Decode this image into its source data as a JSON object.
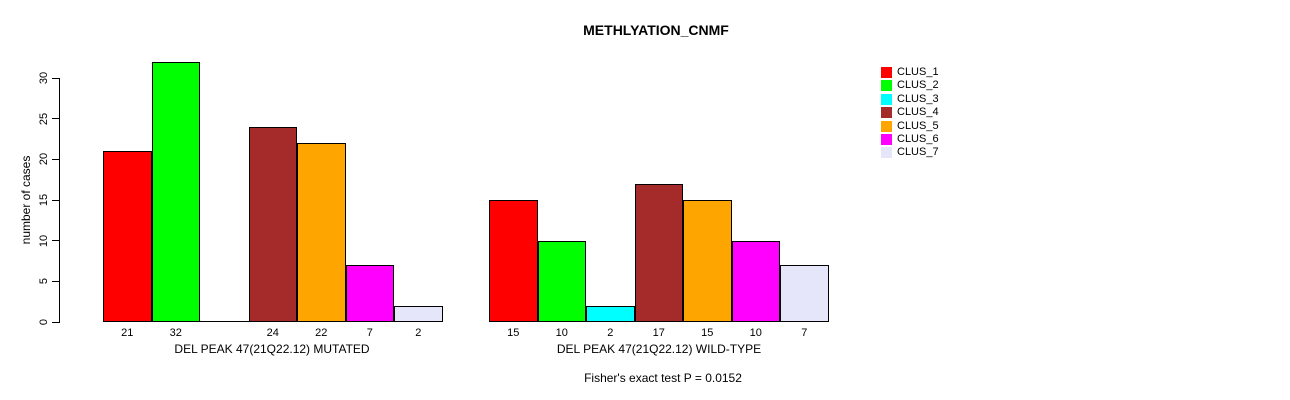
{
  "figure": {
    "title": "METHLYATION_CNMF",
    "footer": "Fisher's exact test P = 0.0152"
  },
  "chart_data": {
    "type": "bar",
    "title": "METHLYATION_CNMF",
    "ylabel": "number of cases",
    "xlabel": "",
    "yticks": [
      0,
      5,
      10,
      15,
      20,
      25,
      30
    ],
    "ylim": [
      0,
      32
    ],
    "grid": false,
    "legend_position": "right-outside",
    "clusters": [
      {
        "name": "CLUS_1",
        "color": "#FF0000"
      },
      {
        "name": "CLUS_2",
        "color": "#00FF00"
      },
      {
        "name": "CLUS_3",
        "color": "#00FFFF"
      },
      {
        "name": "CLUS_4",
        "color": "#A52A2A"
      },
      {
        "name": "CLUS_5",
        "color": "#FFA500"
      },
      {
        "name": "CLUS_6",
        "color": "#FF00FF"
      },
      {
        "name": "CLUS_7",
        "color": "#E6E6FA"
      }
    ],
    "groups": [
      {
        "label": "DEL PEAK 47(21Q22.12) MUTATED",
        "values": [
          21,
          32,
          0,
          24,
          22,
          7,
          2
        ],
        "bar_labels": [
          "21",
          "32",
          "",
          "24",
          "22",
          "7",
          "2"
        ]
      },
      {
        "label": "DEL PEAK 47(21Q22.12) WILD-TYPE",
        "values": [
          15,
          10,
          2,
          17,
          15,
          10,
          7
        ],
        "bar_labels": [
          "15",
          "10",
          "2",
          "17",
          "15",
          "10",
          "7"
        ]
      }
    ],
    "annotation": "Fisher's exact test P = 0.0152"
  }
}
